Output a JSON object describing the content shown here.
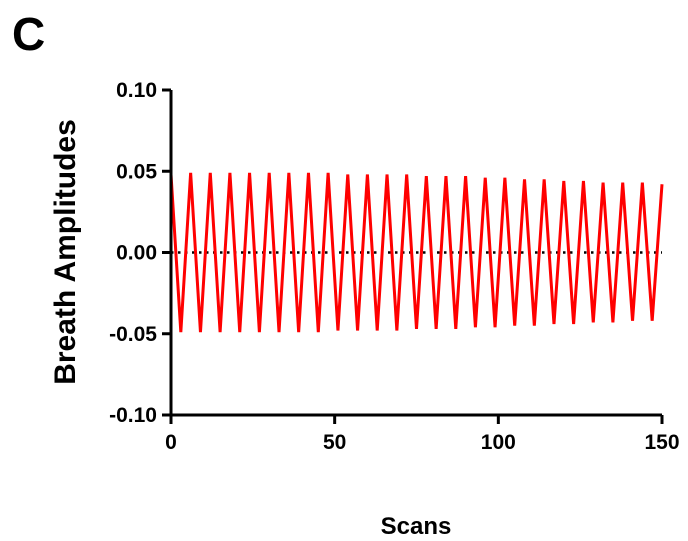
{
  "panel_label": "C",
  "chart_data": {
    "type": "line",
    "title": "",
    "xlabel": "Scans",
    "ylabel": "Breath Amplitudes",
    "xlim": [
      0,
      150
    ],
    "ylim": [
      -0.1,
      0.1
    ],
    "x_ticks": [
      0,
      50,
      100,
      150
    ],
    "x_tick_labels": [
      "0",
      "50",
      "100",
      "150"
    ],
    "y_ticks": [
      0.1,
      0.05,
      0.0,
      -0.05,
      -0.1
    ],
    "y_tick_labels": [
      "0.10",
      "0.05",
      "0.00",
      "-0.05",
      "-0.10"
    ],
    "grid": false,
    "legend": "none",
    "reference_line": {
      "y": 0.0,
      "style": "dotted",
      "color": "#000000"
    },
    "series": [
      {
        "color": "#ff0000",
        "x": [
          0,
          3,
          6,
          9,
          12,
          15,
          18,
          21,
          24,
          27,
          30,
          33,
          36,
          39,
          42,
          45,
          48,
          51,
          54,
          57,
          60,
          63,
          66,
          69,
          72,
          75,
          78,
          81,
          84,
          87,
          90,
          93,
          96,
          99,
          102,
          105,
          108,
          111,
          114,
          117,
          120,
          123,
          126,
          129,
          132,
          135,
          138,
          141,
          144,
          147,
          150
        ],
        "y": [
          0.048,
          -0.049,
          0.049,
          -0.049,
          0.049,
          -0.049,
          0.049,
          -0.049,
          0.049,
          -0.049,
          0.049,
          -0.049,
          0.049,
          -0.049,
          0.049,
          -0.049,
          0.049,
          -0.048,
          0.048,
          -0.048,
          0.048,
          -0.048,
          0.048,
          -0.048,
          0.048,
          -0.047,
          0.047,
          -0.047,
          0.047,
          -0.047,
          0.047,
          -0.046,
          0.046,
          -0.046,
          0.046,
          -0.045,
          0.045,
          -0.045,
          0.045,
          -0.044,
          0.044,
          -0.044,
          0.044,
          -0.043,
          0.043,
          -0.043,
          0.043,
          -0.042,
          0.043,
          -0.042,
          0.042
        ]
      }
    ]
  }
}
